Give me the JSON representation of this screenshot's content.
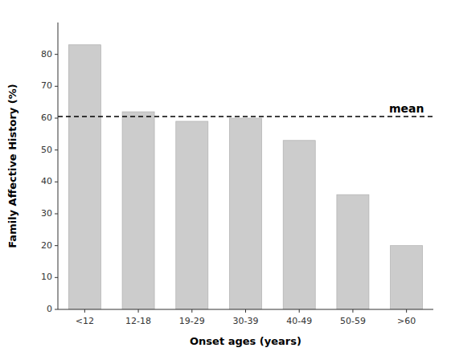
{
  "chart_data": {
    "type": "bar",
    "categories": [
      "<12",
      "12-18",
      "19-29",
      "30-39",
      "40-49",
      "50-59",
      ">60"
    ],
    "values": [
      83,
      62,
      59,
      60,
      53,
      36,
      20
    ],
    "color": "#cccccc",
    "xlabel": "Onset ages (years)",
    "ylabel": "Family Affective History (%)",
    "ylim": [
      0,
      90
    ],
    "yticks": [
      0,
      10,
      20,
      30,
      40,
      50,
      60,
      70,
      80
    ],
    "grid": false,
    "mean_line": {
      "value": 60.5,
      "label": "mean"
    }
  }
}
